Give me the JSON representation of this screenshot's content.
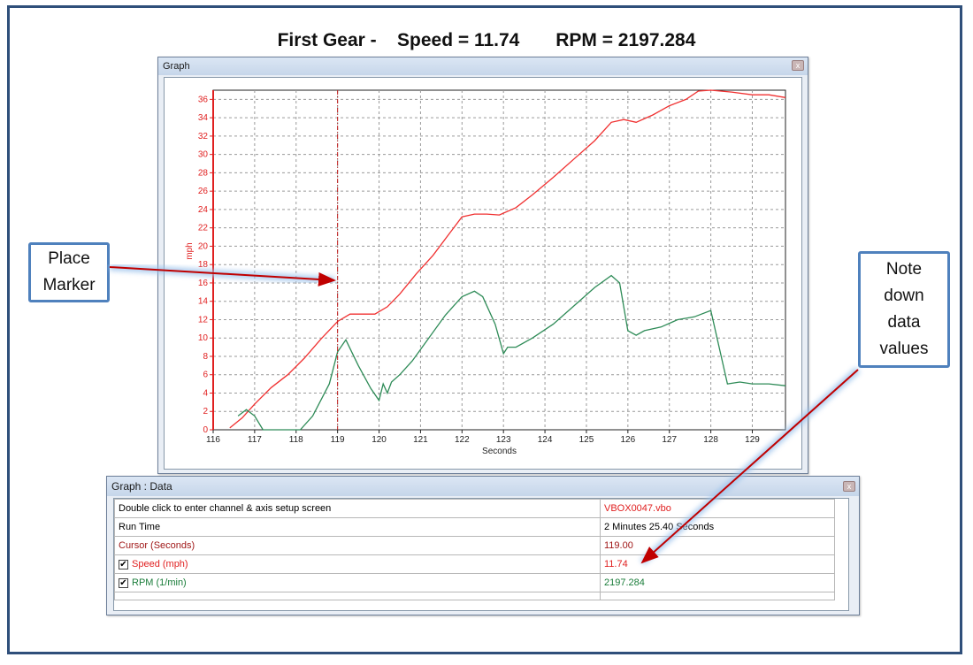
{
  "headline": {
    "gear": "First Gear -",
    "speed": "Speed = 11.74",
    "rpm": "RPM = 2197.284"
  },
  "graph_window": {
    "title": "Graph",
    "close_glyph": "x"
  },
  "chart_data": {
    "type": "line",
    "xlabel": "Seconds",
    "ylabel": "mph",
    "xlim": [
      116,
      129.8
    ],
    "ylim": [
      0,
      37
    ],
    "x_ticks": [
      116,
      117,
      118,
      119,
      120,
      121,
      122,
      123,
      124,
      125,
      126,
      127,
      128,
      129
    ],
    "y_ticks": [
      0,
      2,
      4,
      6,
      8,
      10,
      12,
      14,
      16,
      18,
      20,
      22,
      24,
      26,
      28,
      30,
      32,
      34,
      36
    ],
    "grid": true,
    "cursor_x": 119.0,
    "series": [
      {
        "name": "Speed (mph)",
        "color": "#f03030",
        "x": [
          116.4,
          116.7,
          117.0,
          117.4,
          117.8,
          118.2,
          118.6,
          119.0,
          119.3,
          119.6,
          119.9,
          120.2,
          120.5,
          120.9,
          121.3,
          121.7,
          122.0,
          122.3,
          122.6,
          122.9,
          123.3,
          123.7,
          124.2,
          124.7,
          125.2,
          125.6,
          125.9,
          126.2,
          126.6,
          127.0,
          127.4,
          127.7,
          128.0,
          128.5,
          129.0,
          129.4,
          129.8
        ],
        "values": [
          0.2,
          1.3,
          2.8,
          4.6,
          6.0,
          7.8,
          9.9,
          11.8,
          12.6,
          12.6,
          12.6,
          13.4,
          14.8,
          17.0,
          19.0,
          21.4,
          23.2,
          23.5,
          23.5,
          23.4,
          24.2,
          25.6,
          27.5,
          29.5,
          31.5,
          33.5,
          33.8,
          33.5,
          34.3,
          35.3,
          36.0,
          36.9,
          37.0,
          36.8,
          36.5,
          36.5,
          36.2
        ]
      },
      {
        "name": "RPM (1/min)",
        "color": "#2e8b57",
        "x": [
          116.6,
          116.8,
          117.0,
          117.2,
          117.5,
          117.8,
          118.1,
          118.4,
          118.8,
          119.0,
          119.2,
          119.5,
          119.8,
          120.0,
          120.1,
          120.2,
          120.3,
          120.5,
          120.8,
          121.2,
          121.6,
          122.0,
          122.3,
          122.5,
          122.8,
          123.0,
          123.1,
          123.3,
          123.7,
          124.2,
          124.7,
          125.2,
          125.6,
          125.8,
          126.0,
          126.2,
          126.4,
          126.8,
          127.2,
          127.6,
          128.0,
          128.4,
          128.7,
          129.0,
          129.4,
          129.8
        ],
        "values": [
          1.5,
          2.2,
          1.5,
          0.0,
          0.0,
          0.0,
          0.0,
          1.5,
          5.0,
          8.5,
          9.8,
          7.0,
          4.5,
          3.2,
          5.0,
          4.0,
          5.2,
          6.0,
          7.5,
          10.0,
          12.5,
          14.5,
          15.1,
          14.5,
          11.5,
          8.3,
          9.0,
          9.0,
          10.0,
          11.5,
          13.5,
          15.5,
          16.8,
          16.0,
          10.8,
          10.3,
          10.8,
          11.2,
          12.0,
          12.3,
          13.0,
          5.0,
          5.2,
          5.0,
          5.0,
          4.8
        ]
      }
    ]
  },
  "data_window": {
    "title": "Graph : Data",
    "close_glyph": "x",
    "rows": [
      {
        "label": "Double click to enter channel & axis setup screen",
        "value": "VBOX0047.vbo",
        "checkbox": false
      },
      {
        "label": "Run Time",
        "value": "2 Minutes 25.40 Seconds",
        "checkbox": false
      },
      {
        "label": "Cursor (Seconds)",
        "value": "119.00",
        "checkbox": false
      },
      {
        "label": "Speed (mph)",
        "value": "11.74",
        "checkbox": true
      },
      {
        "label": "RPM (1/min)",
        "value": "2197.284",
        "checkbox": true
      }
    ],
    "check_glyph": "✔"
  },
  "callouts": {
    "place_marker": [
      "Place",
      "Marker"
    ],
    "note_down": [
      "Note",
      "down",
      "data",
      "values"
    ]
  },
  "colors": {
    "frame": "#2f4f7a",
    "callout_border": "#4f81bd",
    "arrow": "#c00000",
    "speed_line": "#f03030",
    "rpm_line": "#2e8b57",
    "axis": "#e02020"
  }
}
